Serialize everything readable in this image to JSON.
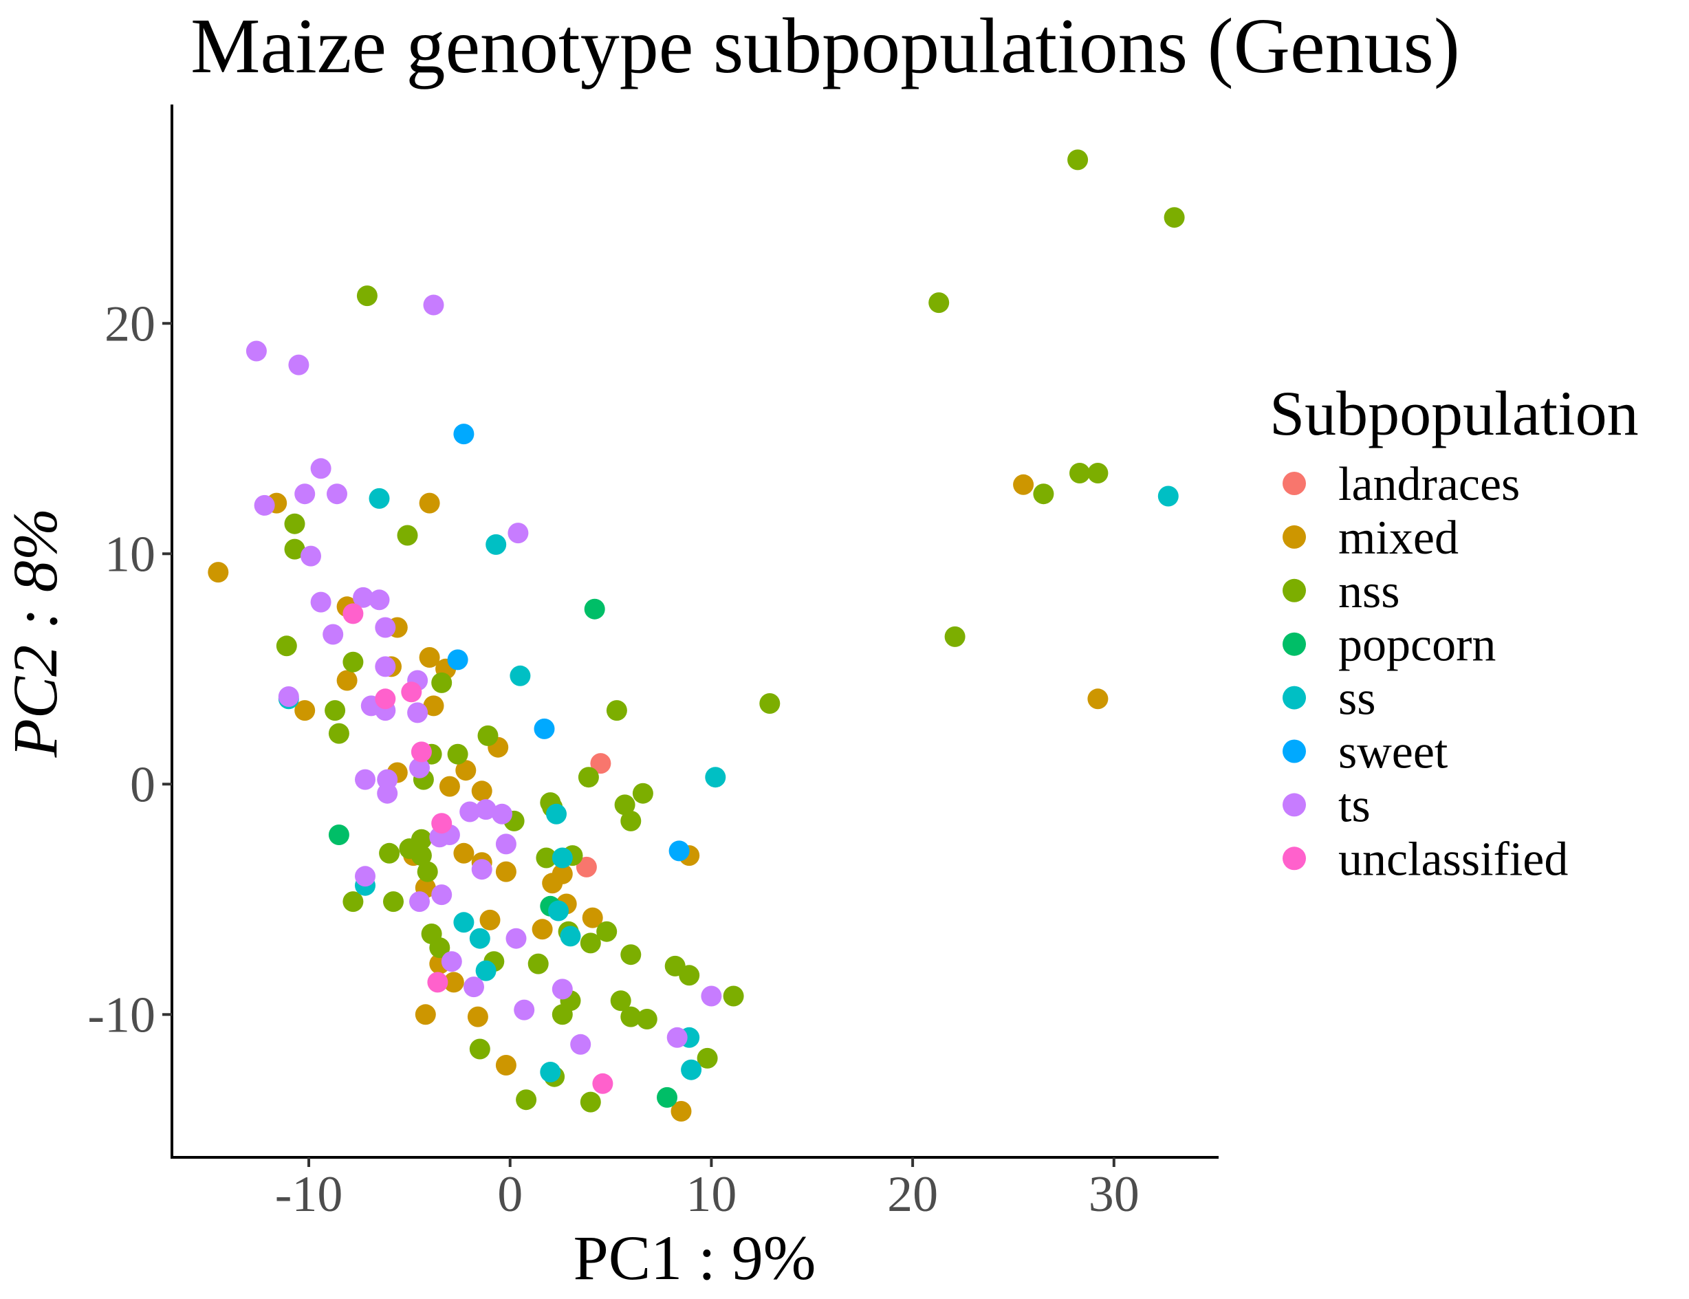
{
  "chart_data": {
    "type": "scatter",
    "title": "Maize genotype subpopulations (Genus)",
    "xlabel": "PC1 : 9%",
    "ylabel": "PC2 : 8%",
    "xlim": [
      -16.8,
      35.2
    ],
    "ylim": [
      -16.2,
      29.5
    ],
    "xticks": [
      -10,
      0,
      10,
      20,
      30
    ],
    "yticks": [
      -10,
      0,
      10,
      20
    ],
    "xtick_labels": [
      "-10",
      "0",
      "10",
      "20",
      "30"
    ],
    "ytick_labels": [
      "-10",
      "0",
      "10",
      "20"
    ],
    "grid": false,
    "legend_position": "right",
    "legend_title": "Subpopulation",
    "series": [
      {
        "name": "landraces",
        "color": "#F8766D",
        "points": [
          [
            4.5,
            0.9
          ],
          [
            3.8,
            -3.6
          ]
        ]
      },
      {
        "name": "mixed",
        "color": "#CD9600",
        "points": [
          [
            -14.5,
            9.2
          ],
          [
            -11.6,
            12.2
          ],
          [
            -8.1,
            7.7
          ],
          [
            -8.1,
            4.5
          ],
          [
            -10.2,
            3.2
          ],
          [
            -5.6,
            6.8
          ],
          [
            -5.9,
            5.1
          ],
          [
            -4.0,
            5.5
          ],
          [
            -3.2,
            5.0
          ],
          [
            -3.8,
            3.4
          ],
          [
            -4.0,
            12.2
          ],
          [
            -5.6,
            0.5
          ],
          [
            -3.0,
            -0.1
          ],
          [
            -2.2,
            0.6
          ],
          [
            -1.4,
            -0.3
          ],
          [
            -0.6,
            1.6
          ],
          [
            -2.3,
            -3.0
          ],
          [
            -1.4,
            -3.4
          ],
          [
            -0.2,
            -3.8
          ],
          [
            -4.8,
            -3.1
          ],
          [
            -4.2,
            -4.5
          ],
          [
            -3.5,
            -7.8
          ],
          [
            -2.8,
            -8.6
          ],
          [
            -4.2,
            -10.0
          ],
          [
            -1.6,
            -10.1
          ],
          [
            -1.0,
            -5.9
          ],
          [
            1.6,
            -6.3
          ],
          [
            2.1,
            -4.3
          ],
          [
            2.6,
            -3.9
          ],
          [
            2.8,
            -5.2
          ],
          [
            4.1,
            -5.8
          ],
          [
            -0.2,
            -12.2
          ],
          [
            8.9,
            -3.1
          ],
          [
            8.5,
            -14.2
          ],
          [
            25.5,
            13.0
          ],
          [
            29.2,
            3.7
          ]
        ]
      },
      {
        "name": "nss",
        "color": "#7CAE00",
        "points": [
          [
            -7.1,
            21.2
          ],
          [
            -10.7,
            11.3
          ],
          [
            -10.7,
            10.2
          ],
          [
            -5.1,
            10.8
          ],
          [
            -11.1,
            6.0
          ],
          [
            -7.8,
            5.3
          ],
          [
            -8.7,
            3.2
          ],
          [
            -8.5,
            2.2
          ],
          [
            -3.4,
            4.4
          ],
          [
            -3.9,
            1.3
          ],
          [
            -2.6,
            1.3
          ],
          [
            -4.3,
            0.2
          ],
          [
            -1.1,
            2.1
          ],
          [
            -6.0,
            -3.0
          ],
          [
            -5.0,
            -2.8
          ],
          [
            -4.4,
            -2.4
          ],
          [
            -4.4,
            -3.1
          ],
          [
            -4.1,
            -3.8
          ],
          [
            -5.8,
            -5.1
          ],
          [
            -7.8,
            -5.1
          ],
          [
            0.2,
            -1.6
          ],
          [
            1.8,
            -3.2
          ],
          [
            2.0,
            -0.8
          ],
          [
            2.1,
            -1.0
          ],
          [
            3.1,
            -3.1
          ],
          [
            2.9,
            -6.4
          ],
          [
            4.0,
            -6.9
          ],
          [
            4.8,
            -6.4
          ],
          [
            3.9,
            0.3
          ],
          [
            5.3,
            3.2
          ],
          [
            5.7,
            -0.9
          ],
          [
            6.0,
            -1.6
          ],
          [
            6.6,
            -0.4
          ],
          [
            -3.9,
            -6.5
          ],
          [
            -3.5,
            -7.1
          ],
          [
            -0.8,
            -7.7
          ],
          [
            1.4,
            -7.8
          ],
          [
            3.0,
            -9.4
          ],
          [
            2.6,
            -10.0
          ],
          [
            6.0,
            -7.4
          ],
          [
            5.5,
            -9.4
          ],
          [
            6.0,
            -10.1
          ],
          [
            6.8,
            -10.2
          ],
          [
            8.2,
            -7.9
          ],
          [
            8.9,
            -8.3
          ],
          [
            11.1,
            -9.2
          ],
          [
            9.8,
            -11.9
          ],
          [
            -1.5,
            -11.5
          ],
          [
            0.8,
            -13.7
          ],
          [
            2.2,
            -12.7
          ],
          [
            4.0,
            -13.8
          ],
          [
            12.9,
            3.5
          ],
          [
            21.3,
            20.9
          ],
          [
            22.1,
            6.4
          ],
          [
            26.5,
            12.6
          ],
          [
            28.3,
            13.5
          ],
          [
            29.2,
            13.5
          ],
          [
            28.2,
            27.1
          ],
          [
            33.0,
            24.6
          ]
        ]
      },
      {
        "name": "popcorn",
        "color": "#00BE67",
        "points": [
          [
            4.2,
            7.6
          ],
          [
            -8.5,
            -2.2
          ],
          [
            2.0,
            -5.3
          ],
          [
            7.8,
            -13.6
          ]
        ]
      },
      {
        "name": "ss",
        "color": "#00BFC4",
        "points": [
          [
            -6.5,
            12.4
          ],
          [
            -0.7,
            10.4
          ],
          [
            0.5,
            4.7
          ],
          [
            -11.0,
            3.7
          ],
          [
            2.3,
            -1.3
          ],
          [
            2.6,
            -3.2
          ],
          [
            2.4,
            -5.5
          ],
          [
            3.0,
            -6.6
          ],
          [
            -7.2,
            -4.4
          ],
          [
            -2.3,
            -6.0
          ],
          [
            -1.5,
            -6.7
          ],
          [
            -1.2,
            -8.1
          ],
          [
            10.2,
            0.3
          ],
          [
            8.9,
            -11.0
          ],
          [
            9.0,
            -12.4
          ],
          [
            2.0,
            -12.5
          ],
          [
            32.7,
            12.5
          ]
        ]
      },
      {
        "name": "sweet",
        "color": "#00A9FF",
        "points": [
          [
            -2.3,
            15.2
          ],
          [
            -2.6,
            5.4
          ],
          [
            1.7,
            2.4
          ],
          [
            8.4,
            -2.9
          ]
        ]
      },
      {
        "name": "ts",
        "color": "#C77CFF",
        "points": [
          [
            -12.6,
            18.8
          ],
          [
            -10.5,
            18.2
          ],
          [
            -3.8,
            20.8
          ],
          [
            -9.4,
            13.7
          ],
          [
            -10.2,
            12.6
          ],
          [
            -8.6,
            12.6
          ],
          [
            -12.2,
            12.1
          ],
          [
            -9.9,
            9.9
          ],
          [
            0.4,
            10.9
          ],
          [
            -9.4,
            7.9
          ],
          [
            -7.3,
            8.1
          ],
          [
            -6.5,
            8.0
          ],
          [
            -6.2,
            6.8
          ],
          [
            -8.8,
            6.5
          ],
          [
            -6.2,
            5.1
          ],
          [
            -11.0,
            3.8
          ],
          [
            -6.9,
            3.4
          ],
          [
            -6.2,
            3.2
          ],
          [
            -4.6,
            4.5
          ],
          [
            -4.6,
            3.1
          ],
          [
            -7.2,
            0.2
          ],
          [
            -6.1,
            0.2
          ],
          [
            -6.1,
            -0.4
          ],
          [
            -4.5,
            0.7
          ],
          [
            -2.0,
            -1.2
          ],
          [
            -1.2,
            -1.1
          ],
          [
            -0.4,
            -1.3
          ],
          [
            -3.5,
            -2.3
          ],
          [
            -3.0,
            -2.2
          ],
          [
            -0.2,
            -2.6
          ],
          [
            -1.4,
            -3.7
          ],
          [
            -7.2,
            -4.0
          ],
          [
            -4.5,
            -5.1
          ],
          [
            -3.4,
            -4.8
          ],
          [
            0.3,
            -6.7
          ],
          [
            -2.9,
            -7.7
          ],
          [
            -1.8,
            -8.8
          ],
          [
            0.7,
            -9.8
          ],
          [
            2.6,
            -8.9
          ],
          [
            3.5,
            -11.3
          ],
          [
            8.3,
            -11.0
          ],
          [
            10.0,
            -9.2
          ]
        ]
      },
      {
        "name": "unclassified",
        "color": "#FF61CC",
        "points": [
          [
            -7.8,
            7.4
          ],
          [
            -6.2,
            3.7
          ],
          [
            -4.9,
            4.0
          ],
          [
            -4.4,
            1.4
          ],
          [
            -3.4,
            -1.7
          ],
          [
            -3.6,
            -8.6
          ],
          [
            4.6,
            -13.0
          ]
        ]
      }
    ]
  }
}
